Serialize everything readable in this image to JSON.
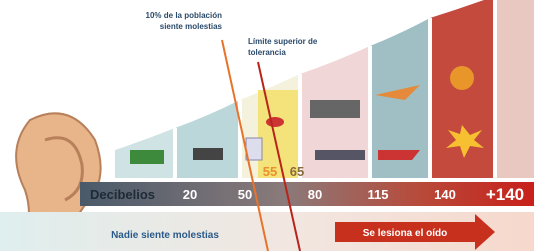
{
  "annotations": {
    "population": "10% de la población siente molestias",
    "limit": "Límite superior de tolerancia"
  },
  "scale": {
    "title": "Decibelios",
    "levels": [
      "20",
      "50",
      "55",
      "65",
      "80",
      "115",
      "140",
      "+140"
    ]
  },
  "footer": {
    "left": "Nadie siente molestias",
    "right": "Se lesiona el oído"
  }
}
